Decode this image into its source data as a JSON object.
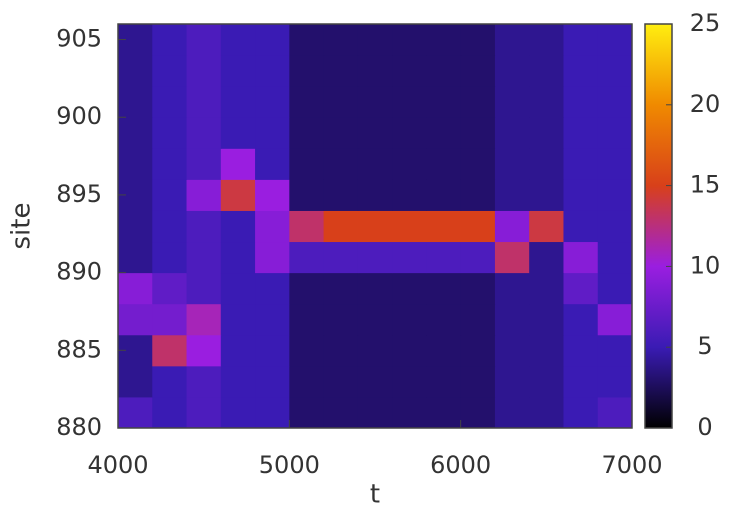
{
  "chart_data": {
    "type": "heatmap",
    "x_label": "t",
    "y_label": "site",
    "xbins": [
      4000,
      4200,
      4400,
      4600,
      4800,
      5000,
      5200,
      5400,
      5600,
      5800,
      6000,
      6200,
      6400,
      6600,
      6800,
      7000
    ],
    "ybins": [
      880,
      882,
      884,
      886,
      888,
      890,
      892,
      894,
      896,
      898,
      900,
      902,
      904,
      906
    ],
    "z": [
      [
        6,
        5,
        6,
        5,
        5,
        3,
        3,
        3,
        3,
        3,
        3,
        4,
        4,
        5,
        6
      ],
      [
        4,
        5,
        6,
        5,
        5,
        3,
        3,
        3,
        3,
        3,
        3,
        4,
        4,
        5,
        5
      ],
      [
        4,
        13,
        10,
        5,
        5,
        3,
        3,
        3,
        3,
        3,
        3,
        4,
        4,
        5,
        5
      ],
      [
        8,
        8,
        11,
        5,
        5,
        3,
        3,
        3,
        3,
        3,
        3,
        4,
        4,
        5,
        9
      ],
      [
        9,
        7,
        6,
        5,
        5,
        3,
        3,
        3,
        3,
        3,
        3,
        4,
        4,
        7,
        5
      ],
      [
        4,
        5,
        6,
        5,
        9,
        6,
        6,
        6,
        6,
        6,
        6,
        13,
        4,
        9,
        5
      ],
      [
        4,
        5,
        6,
        5,
        9,
        13,
        15,
        15,
        15,
        15,
        15,
        9,
        14,
        5,
        5
      ],
      [
        4,
        5,
        9,
        14,
        10,
        3,
        3,
        3,
        3,
        3,
        3,
        4,
        4,
        5,
        5
      ],
      [
        4,
        5,
        6,
        10,
        5,
        3,
        3,
        3,
        3,
        3,
        3,
        4,
        4,
        5,
        5
      ],
      [
        4,
        5,
        6,
        5,
        5,
        3,
        3,
        3,
        3,
        3,
        3,
        4,
        4,
        5,
        5
      ],
      [
        4,
        5,
        6,
        5,
        5,
        3,
        3,
        3,
        3,
        3,
        3,
        4,
        4,
        5,
        5
      ],
      [
        4,
        5,
        6,
        5,
        5,
        3,
        3,
        3,
        3,
        3,
        3,
        4,
        4,
        5,
        5
      ],
      [
        4,
        5,
        6,
        5,
        5,
        3,
        3,
        3,
        3,
        3,
        3,
        4,
        4,
        5,
        5
      ]
    ],
    "xlim": [
      4000,
      7000
    ],
    "xticks": [
      4000,
      5000,
      6000,
      7000
    ],
    "ylim": [
      880,
      906
    ],
    "yticks": [
      880,
      885,
      890,
      895,
      900,
      905
    ],
    "clim": [
      0,
      25
    ],
    "cticks": [
      0,
      5,
      10,
      15,
      20,
      25
    ],
    "colormap": [
      "#000000",
      "#3a1bb4",
      "#9a1ee0",
      "#d8401a",
      "#f08a00",
      "#ffee10"
    ]
  }
}
